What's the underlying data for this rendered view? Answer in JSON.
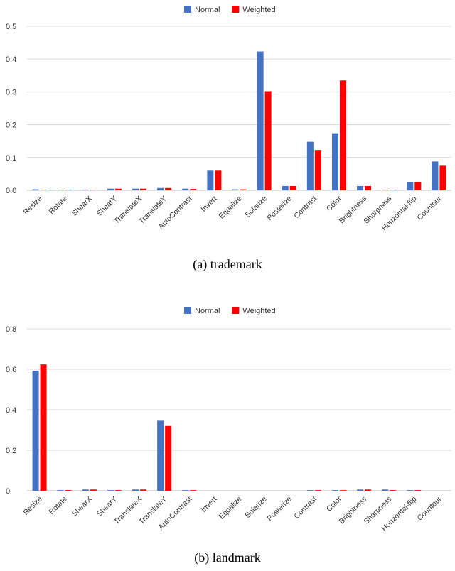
{
  "chart_data": [
    {
      "type": "bar",
      "caption": "(a) trademark",
      "categories": [
        "Resize",
        "Rotate",
        "ShearX",
        "ShearY",
        "TranslateX",
        "TranslateY",
        "AutoContrast",
        "Invert",
        "Equalize",
        "Solarize",
        "Posterize",
        "Contrast",
        "Color",
        "Brightness",
        "Sharpness",
        "Horizontal-flip",
        "Countour"
      ],
      "series": [
        {
          "name": "Normal",
          "color": "#4472C4",
          "values": [
            0.003,
            0.002,
            0.002,
            0.005,
            0.005,
            0.007,
            0.005,
            0.06,
            0.003,
            0.423,
            0.013,
            0.148,
            0.174,
            0.013,
            0.002,
            0.026,
            0.088
          ]
        },
        {
          "name": "Weighted",
          "color": "#FF0000",
          "values": [
            0.002,
            0.002,
            0.002,
            0.005,
            0.005,
            0.007,
            0.004,
            0.06,
            0.003,
            0.302,
            0.013,
            0.123,
            0.335,
            0.013,
            0.002,
            0.026,
            0.075
          ]
        }
      ],
      "yticks": [
        "0.0",
        "0.1",
        "0.2",
        "0.3",
        "0.4",
        "0.5"
      ],
      "ylim": [
        0,
        0.5
      ],
      "grid": true,
      "legend": "top-center"
    },
    {
      "type": "bar",
      "caption": "(b) landmark",
      "categories": [
        "Resize",
        "Rotate",
        "ShearX",
        "ShearY",
        "TranslateX",
        "TranslateY",
        "AutoContrast",
        "Invert",
        "Equalize",
        "Solarize",
        "Posterize",
        "Contrast",
        "Color",
        "Brightness",
        "Sharpness",
        "Horizontal-flip",
        "Countour"
      ],
      "series": [
        {
          "name": "Normal",
          "color": "#4472C4",
          "values": [
            0.593,
            0.003,
            0.006,
            0.003,
            0.006,
            0.346,
            0.003,
            0,
            0,
            0,
            0,
            0.003,
            0.003,
            0.006,
            0.006,
            0.003,
            0
          ]
        },
        {
          "name": "Weighted",
          "color": "#FF0000",
          "values": [
            0.624,
            0.003,
            0.006,
            0.003,
            0.006,
            0.32,
            0.003,
            0,
            0,
            0,
            0,
            0.003,
            0.003,
            0.006,
            0.003,
            0.003,
            0
          ]
        }
      ],
      "yticks": [
        "0",
        "0.2",
        "0.4",
        "0.6",
        "0.8"
      ],
      "ylim": [
        0,
        0.8
      ],
      "grid": true,
      "legend": "top-center"
    }
  ]
}
